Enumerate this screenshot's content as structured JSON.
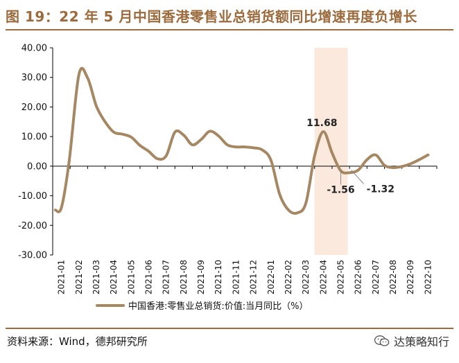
{
  "header": {
    "title": "图 19：22 年 5 月中国香港零售业总销货额同比增速再度负增长"
  },
  "footer": {
    "source": "资料来源：Wind，德邦研究所",
    "watermark": "达策略知行"
  },
  "colors": {
    "accent": "#9c6b3d",
    "series": "#a58863",
    "highlight": "#fbe9dd",
    "axis": "#000000"
  },
  "chart_data": {
    "type": "line",
    "title": "",
    "xlabel": "",
    "ylabel": "",
    "ylim": [
      -30,
      40
    ],
    "yticks": [
      40,
      30,
      20,
      10,
      0,
      -10,
      -20,
      -30
    ],
    "ytick_labels": [
      "40.00",
      "30.00",
      "20.00",
      "10.00",
      "0.00",
      "-10.00",
      "-20.00",
      "-30.00"
    ],
    "categories": [
      "2021-01",
      "2021-02",
      "2021-03",
      "2021-04",
      "2021-05",
      "2021-06",
      "2021-07",
      "2021-08",
      "2021-09",
      "2021-10",
      "2021-11",
      "2021-12",
      "2022-01",
      "2022-02",
      "2022-03",
      "2022-04",
      "2022-05",
      "2022-06",
      "2022-07",
      "2022-08",
      "2022-09",
      "2022-10"
    ],
    "series": [
      {
        "name": "中国香港:零售业总销货:价值:当月同比（%）",
        "x": [
          -0.35,
          0.0,
          0.45,
          1.0,
          1.5,
          2.0,
          2.5,
          3.0,
          3.5,
          4.0,
          4.5,
          5.0,
          5.5,
          6.0,
          6.5,
          7.0,
          7.5,
          8.0,
          8.5,
          9.0,
          9.5,
          10.0,
          10.5,
          11.0,
          11.5,
          12.0,
          12.5,
          13.0,
          13.5,
          14.0,
          14.5,
          15.0,
          15.5,
          16.0,
          16.5,
          17.0,
          17.5,
          18.0,
          18.5,
          19.0,
          19.5,
          20.0,
          20.5,
          21.0
        ],
        "values": [
          -14.8,
          -14.0,
          2.0,
          30.9,
          29.8,
          20.3,
          15.0,
          11.5,
          10.8,
          9.8,
          7.0,
          5.0,
          2.5,
          3.5,
          11.5,
          10.5,
          7.2,
          9.0,
          11.8,
          10.2,
          7.2,
          6.5,
          6.5,
          6.2,
          5.5,
          2.0,
          -9.5,
          -14.8,
          -15.8,
          -12.5,
          3.5,
          11.68,
          4.5,
          -1.56,
          -2.2,
          -1.32,
          2.2,
          3.8,
          0.3,
          -0.5,
          -0.1,
          0.8,
          2.2,
          3.8
        ]
      }
    ],
    "highlight_band": {
      "from": 15.0,
      "to": 16.9
    },
    "annotations": [
      {
        "x": 15.0,
        "y": 11.68,
        "label": "11.68"
      },
      {
        "x": 16.0,
        "y": -1.56,
        "label": "-1.56"
      },
      {
        "x": 17.0,
        "y": -1.32,
        "label": "-1.32"
      }
    ],
    "legend": {
      "label": "中国香港:零售业总销货:价值:当月同比（%）",
      "position": "bottom"
    }
  }
}
